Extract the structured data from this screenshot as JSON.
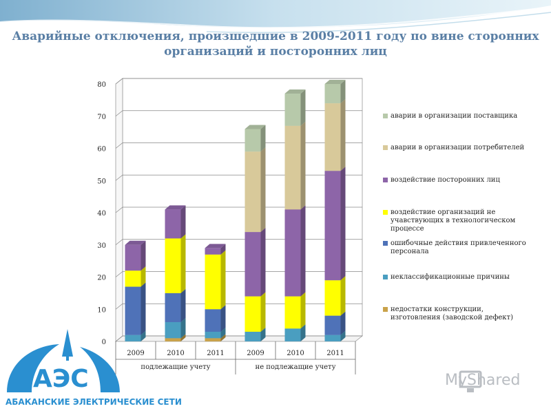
{
  "title": "Аварийные отключения, произшедшие в 2009-2011 году по вине сторонних организаций и посторонних  лиц",
  "logo": {
    "abbr": "АЭС",
    "name": "АБАКАНСКИЕ ЭЛЕКТРИЧЕСКИЕ СЕТИ"
  },
  "watermark": "MyShared",
  "colors": {
    "title": "#5a7fa5",
    "accent": "#2a8fd0"
  },
  "chart_data": {
    "type": "bar",
    "stacked": true,
    "three_d": true,
    "categories": [
      "2009",
      "2010",
      "2011",
      "2009",
      "2010",
      "2011"
    ],
    "groups": [
      {
        "label": "подлежащие учету",
        "span": 3
      },
      {
        "label": "не подлежащие учету",
        "span": 3
      }
    ],
    "ylim": [
      0,
      80
    ],
    "yticks": [
      "0",
      "10",
      "20",
      "30",
      "40",
      "50",
      "60",
      "70",
      "80"
    ],
    "grid": true,
    "legend_position": "right",
    "series": [
      {
        "name": "недостатки конструкции, изготовления (заводской дефект)",
        "color": "#c9a24a",
        "values": [
          0,
          1,
          1,
          0,
          0,
          0
        ]
      },
      {
        "name": "неклассификационные причины",
        "color": "#4a9ec0",
        "values": [
          2,
          5,
          2,
          3,
          4,
          2
        ]
      },
      {
        "name": "ошибочные действия привлеченного персонала",
        "color": "#4f72b8",
        "values": [
          15,
          9,
          7,
          0,
          0,
          6
        ]
      },
      {
        "name": "воздействие организаций не учавствующих в технологическом процессе",
        "color": "#ffff00",
        "values": [
          5,
          17,
          17,
          11,
          10,
          11
        ]
      },
      {
        "name": "воздействие посторонних лиц",
        "color": "#8d65a8",
        "values": [
          8,
          9,
          2,
          20,
          27,
          34
        ]
      },
      {
        "name": "аварии в организации потребителей",
        "color": "#d8c99a",
        "values": [
          0,
          0,
          0,
          25,
          26,
          21
        ]
      },
      {
        "name": "аварии в организации поставщика",
        "color": "#b7c9aa",
        "values": [
          0,
          0,
          0,
          7,
          10,
          6
        ]
      }
    ]
  }
}
